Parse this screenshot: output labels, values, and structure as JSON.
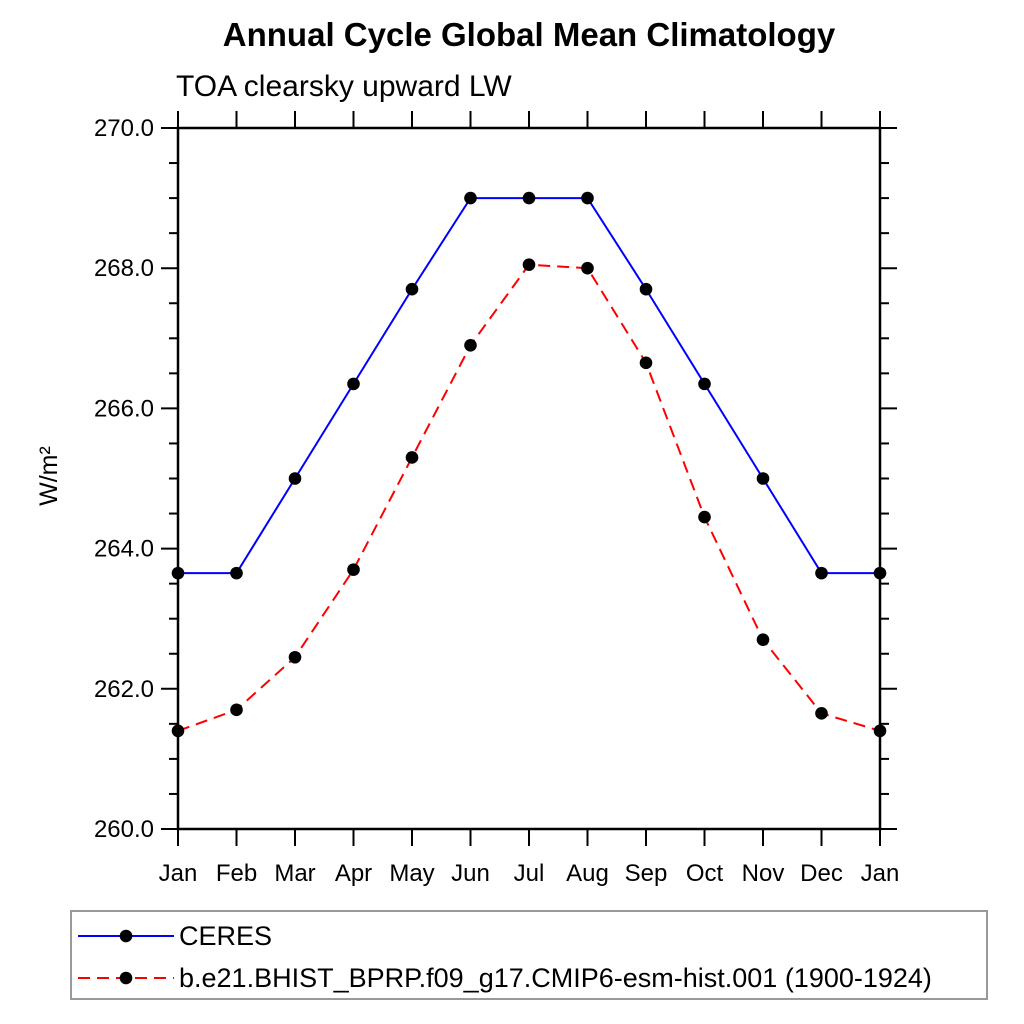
{
  "chart_data": {
    "type": "line",
    "title": "Annual Cycle Global Mean Climatology",
    "subtitle": "TOA clearsky upward LW",
    "ylabel": "W/m²",
    "xlabel": "",
    "categories": [
      "Jan",
      "Feb",
      "Mar",
      "Apr",
      "May",
      "Jun",
      "Jul",
      "Aug",
      "Sep",
      "Oct",
      "Nov",
      "Dec",
      "Jan"
    ],
    "ylim": [
      260.0,
      270.0
    ],
    "ytick_major_values": [
      260,
      262,
      264,
      266,
      268,
      270
    ],
    "ytick_major_labels": [
      "260.0",
      "262.0",
      "264.0",
      "266.0",
      "268.0",
      "270.0"
    ],
    "ytick_minor_step": 0.5,
    "grid": false,
    "legend_position": "bottom-left-outside-box",
    "series": [
      {
        "name": "CERES",
        "color": "#0000ff",
        "line_style": "solid",
        "marker": "filled-circle",
        "marker_color": "#000000",
        "values": [
          263.65,
          263.65,
          265.0,
          266.35,
          267.7,
          269.0,
          269.0,
          269.0,
          267.7,
          266.35,
          265.0,
          263.65,
          263.65
        ]
      },
      {
        "name": "b.e21.BHIST_BPRP.f09_g17.CMIP6-esm-hist.001 (1900-1924)",
        "color": "#ff0000",
        "line_style": "dashed",
        "marker": "filled-circle",
        "marker_color": "#000000",
        "values": [
          261.4,
          261.7,
          262.45,
          263.7,
          265.3,
          266.9,
          268.05,
          268.0,
          266.65,
          264.45,
          262.7,
          261.65,
          261.4
        ]
      }
    ],
    "axis_color": "#000000",
    "legend_border_color": "#999999"
  }
}
